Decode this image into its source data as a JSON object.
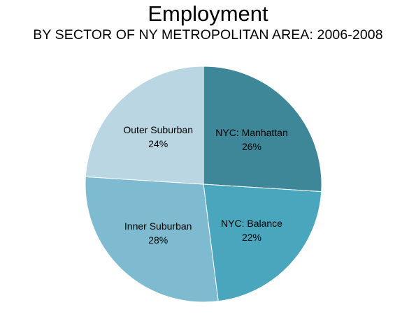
{
  "chart_data": {
    "type": "pie",
    "title": "Employment",
    "subtitle": "BY SECTOR OF NY METROPOLITAN AREA: 2006-2008",
    "slices": [
      {
        "label": "NYC: Manhattan",
        "value": 26,
        "value_label": "26%",
        "color": "#3d8799"
      },
      {
        "label": "NYC: Balance",
        "value": 22,
        "value_label": "22%",
        "color": "#4aa6bd"
      },
      {
        "label": "Inner Suburban",
        "value": 28,
        "value_label": "28%",
        "color": "#7ebbd1"
      },
      {
        "label": "Outer Suburban",
        "value": 24,
        "value_label": "24%",
        "color": "#b9d6e2"
      }
    ],
    "start": "12 o'clock",
    "direction": "clockwise",
    "legend": "none",
    "data_labels": "inside"
  }
}
